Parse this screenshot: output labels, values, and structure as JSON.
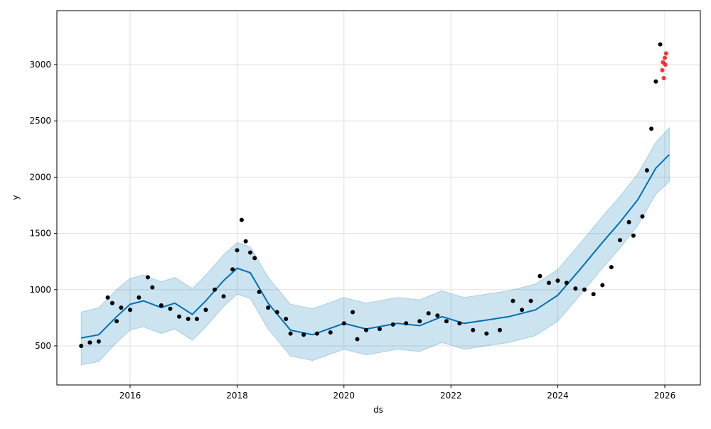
{
  "chart_data": {
    "type": "line",
    "title": "",
    "xlabel": "ds",
    "ylabel": "y",
    "x_range": [
      "2015-06-01",
      "2026-07-01"
    ],
    "ylim": [
      150,
      3450
    ],
    "x_ticks": [
      {
        "label": "2016",
        "date": "2016-01-01"
      },
      {
        "label": "2018",
        "date": "2018-01-01"
      },
      {
        "label": "2020",
        "date": "2020-01-01"
      },
      {
        "label": "2022",
        "date": "2022-01-01"
      },
      {
        "label": "2024",
        "date": "2024-01-01"
      },
      {
        "label": "2026",
        "date": "2026-01-01"
      }
    ],
    "y_ticks": [
      500,
      1000,
      1500,
      2000,
      2500,
      3000
    ],
    "grid": true,
    "legend": "none",
    "colors": {
      "forecast": "#0072B2",
      "interval": "#0072B2",
      "observed": "#000000",
      "holdout": "#ff0000",
      "grid": "#e0e0e0"
    },
    "forecast": [
      {
        "x": "2015-02-01",
        "yhat": 570,
        "lower": 330,
        "upper": 800
      },
      {
        "x": "2015-06-01",
        "yhat": 600,
        "lower": 360,
        "upper": 840
      },
      {
        "x": "2015-10-01",
        "yhat": 760,
        "lower": 530,
        "upper": 1000
      },
      {
        "x": "2016-01-01",
        "yhat": 870,
        "lower": 640,
        "upper": 1100
      },
      {
        "x": "2016-04-01",
        "yhat": 900,
        "lower": 670,
        "upper": 1130
      },
      {
        "x": "2016-08-01",
        "yhat": 840,
        "lower": 610,
        "upper": 1070
      },
      {
        "x": "2016-11-01",
        "yhat": 880,
        "lower": 650,
        "upper": 1110
      },
      {
        "x": "2017-03-01",
        "yhat": 780,
        "lower": 550,
        "upper": 1010
      },
      {
        "x": "2017-06-01",
        "yhat": 900,
        "lower": 670,
        "upper": 1130
      },
      {
        "x": "2017-10-01",
        "yhat": 1080,
        "lower": 850,
        "upper": 1310
      },
      {
        "x": "2018-01-01",
        "yhat": 1190,
        "lower": 960,
        "upper": 1420
      },
      {
        "x": "2018-04-01",
        "yhat": 1150,
        "lower": 920,
        "upper": 1380
      },
      {
        "x": "2018-08-01",
        "yhat": 880,
        "lower": 650,
        "upper": 1110
      },
      {
        "x": "2019-01-01",
        "yhat": 640,
        "lower": 410,
        "upper": 870
      },
      {
        "x": "2019-06-01",
        "yhat": 600,
        "lower": 370,
        "upper": 830
      },
      {
        "x": "2020-01-01",
        "yhat": 700,
        "lower": 470,
        "upper": 930
      },
      {
        "x": "2020-06-01",
        "yhat": 650,
        "lower": 420,
        "upper": 880
      },
      {
        "x": "2021-01-01",
        "yhat": 700,
        "lower": 470,
        "upper": 930
      },
      {
        "x": "2021-06-01",
        "yhat": 680,
        "lower": 450,
        "upper": 910
      },
      {
        "x": "2021-11-01",
        "yhat": 760,
        "lower": 530,
        "upper": 990
      },
      {
        "x": "2022-04-01",
        "yhat": 700,
        "lower": 470,
        "upper": 930
      },
      {
        "x": "2022-09-01",
        "yhat": 730,
        "lower": 500,
        "upper": 960
      },
      {
        "x": "2023-02-01",
        "yhat": 760,
        "lower": 530,
        "upper": 990
      },
      {
        "x": "2023-08-01",
        "yhat": 820,
        "lower": 590,
        "upper": 1050
      },
      {
        "x": "2024-01-01",
        "yhat": 950,
        "lower": 720,
        "upper": 1180
      },
      {
        "x": "2024-06-01",
        "yhat": 1180,
        "lower": 950,
        "upper": 1410
      },
      {
        "x": "2024-11-01",
        "yhat": 1420,
        "lower": 1190,
        "upper": 1650
      },
      {
        "x": "2025-03-01",
        "yhat": 1600,
        "lower": 1370,
        "upper": 1830
      },
      {
        "x": "2025-07-01",
        "yhat": 1800,
        "lower": 1570,
        "upper": 2030
      },
      {
        "x": "2025-11-01",
        "yhat": 2080,
        "lower": 1850,
        "upper": 2310
      },
      {
        "x": "2026-02-01",
        "yhat": 2200,
        "lower": 1960,
        "upper": 2440
      }
    ],
    "observed": [
      {
        "x": "2015-02-01",
        "y": 500
      },
      {
        "x": "2015-04-01",
        "y": 530
      },
      {
        "x": "2015-06-01",
        "y": 540
      },
      {
        "x": "2015-08-01",
        "y": 930
      },
      {
        "x": "2015-09-01",
        "y": 880
      },
      {
        "x": "2015-10-01",
        "y": 720
      },
      {
        "x": "2015-11-01",
        "y": 840
      },
      {
        "x": "2016-01-01",
        "y": 820
      },
      {
        "x": "2016-03-01",
        "y": 930
      },
      {
        "x": "2016-05-01",
        "y": 1110
      },
      {
        "x": "2016-06-01",
        "y": 1020
      },
      {
        "x": "2016-08-01",
        "y": 860
      },
      {
        "x": "2016-10-01",
        "y": 830
      },
      {
        "x": "2016-12-01",
        "y": 760
      },
      {
        "x": "2017-02-01",
        "y": 740
      },
      {
        "x": "2017-04-01",
        "y": 740
      },
      {
        "x": "2017-06-01",
        "y": 820
      },
      {
        "x": "2017-08-01",
        "y": 1000
      },
      {
        "x": "2017-10-01",
        "y": 940
      },
      {
        "x": "2017-12-01",
        "y": 1180
      },
      {
        "x": "2018-01-01",
        "y": 1350
      },
      {
        "x": "2018-02-01",
        "y": 1620
      },
      {
        "x": "2018-03-01",
        "y": 1430
      },
      {
        "x": "2018-04-01",
        "y": 1330
      },
      {
        "x": "2018-05-01",
        "y": 1280
      },
      {
        "x": "2018-06-01",
        "y": 980
      },
      {
        "x": "2018-08-01",
        "y": 840
      },
      {
        "x": "2018-10-01",
        "y": 800
      },
      {
        "x": "2018-12-01",
        "y": 740
      },
      {
        "x": "2019-01-01",
        "y": 610
      },
      {
        "x": "2019-04-01",
        "y": 600
      },
      {
        "x": "2019-07-01",
        "y": 610
      },
      {
        "x": "2019-10-01",
        "y": 620
      },
      {
        "x": "2020-01-01",
        "y": 700
      },
      {
        "x": "2020-03-01",
        "y": 800
      },
      {
        "x": "2020-04-01",
        "y": 560
      },
      {
        "x": "2020-06-01",
        "y": 640
      },
      {
        "x": "2020-09-01",
        "y": 650
      },
      {
        "x": "2020-12-01",
        "y": 690
      },
      {
        "x": "2021-03-01",
        "y": 700
      },
      {
        "x": "2021-06-01",
        "y": 720
      },
      {
        "x": "2021-08-01",
        "y": 790
      },
      {
        "x": "2021-10-01",
        "y": 770
      },
      {
        "x": "2021-12-01",
        "y": 720
      },
      {
        "x": "2022-03-01",
        "y": 700
      },
      {
        "x": "2022-06-01",
        "y": 640
      },
      {
        "x": "2022-09-01",
        "y": 610
      },
      {
        "x": "2022-12-01",
        "y": 640
      },
      {
        "x": "2023-03-01",
        "y": 900
      },
      {
        "x": "2023-05-01",
        "y": 820
      },
      {
        "x": "2023-07-01",
        "y": 900
      },
      {
        "x": "2023-09-01",
        "y": 1120
      },
      {
        "x": "2023-11-01",
        "y": 1060
      },
      {
        "x": "2024-01-01",
        "y": 1080
      },
      {
        "x": "2024-03-01",
        "y": 1060
      },
      {
        "x": "2024-05-01",
        "y": 1010
      },
      {
        "x": "2024-07-01",
        "y": 1000
      },
      {
        "x": "2024-09-01",
        "y": 960
      },
      {
        "x": "2024-11-01",
        "y": 1040
      },
      {
        "x": "2025-01-01",
        "y": 1200
      },
      {
        "x": "2025-03-01",
        "y": 1440
      },
      {
        "x": "2025-05-01",
        "y": 1600
      },
      {
        "x": "2025-06-01",
        "y": 1480
      },
      {
        "x": "2025-08-01",
        "y": 1650
      },
      {
        "x": "2025-09-01",
        "y": 2060
      },
      {
        "x": "2025-10-01",
        "y": 2430
      },
      {
        "x": "2025-11-01",
        "y": 2850
      },
      {
        "x": "2025-12-01",
        "y": 3180
      }
    ],
    "holdout": [
      {
        "x": "2025-12-15",
        "y": 2950
      },
      {
        "x": "2025-12-20",
        "y": 3020
      },
      {
        "x": "2025-12-25",
        "y": 2880
      },
      {
        "x": "2026-01-01",
        "y": 3060
      },
      {
        "x": "2026-01-05",
        "y": 3000
      },
      {
        "x": "2026-01-10",
        "y": 3100
      }
    ]
  }
}
